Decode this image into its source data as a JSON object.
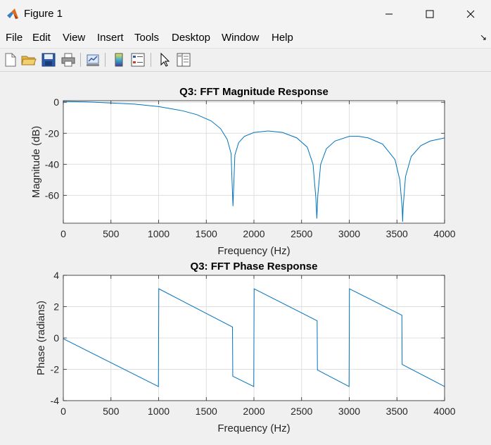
{
  "window": {
    "title": "Figure 1",
    "minimize_icon": "minimize-icon",
    "maximize_icon": "maximize-icon",
    "close_icon": "close-icon"
  },
  "menu": {
    "items": [
      "File",
      "Edit",
      "View",
      "Insert",
      "Tools",
      "Desktop",
      "Window",
      "Help"
    ],
    "dock_icon": "dock-arrow-icon"
  },
  "toolbar": {
    "buttons": [
      "new-figure-icon",
      "open-file-icon",
      "save-icon",
      "print-icon",
      "link-plot-icon",
      "insert-colorbar-icon",
      "insert-legend-icon",
      "edit-plot-arrow-icon",
      "property-inspector-icon"
    ]
  },
  "colors": {
    "line": "#0072bd",
    "axes_bg": "#ffffff",
    "grid": "#dfdfdf",
    "figure_bg": "#f0f0f0"
  },
  "chart_data": [
    {
      "type": "line",
      "title": "Q3: FFT Magnitude Response",
      "xlabel": "Frequency (Hz)",
      "ylabel": "Magnitude (dB)",
      "xlim": [
        0,
        4000
      ],
      "ylim": [
        -78,
        1
      ],
      "xticks": [
        0,
        500,
        1000,
        1500,
        2000,
        2500,
        3000,
        3500,
        4000
      ],
      "yticks": [
        0,
        -20,
        -40,
        -60
      ],
      "grid": true,
      "series": [
        {
          "x": [
            0,
            250,
            500,
            750,
            1000,
            1250,
            1400,
            1550,
            1650,
            1720,
            1760,
            1780,
            1800,
            1840,
            1900,
            2000,
            2150,
            2300,
            2450,
            2560,
            2620,
            2650,
            2660,
            2670,
            2700,
            2760,
            2850,
            3000,
            3100,
            3200,
            3350,
            3480,
            3530,
            3555,
            3560,
            3565,
            3590,
            3650,
            3750,
            3850,
            4000
          ],
          "y": [
            0.5,
            0.2,
            -0.5,
            -1.2,
            -2.8,
            -5.5,
            -8,
            -12,
            -17,
            -24,
            -33,
            -67,
            -34,
            -26,
            -22,
            -19.5,
            -18.5,
            -19.5,
            -23,
            -29,
            -40,
            -62,
            -75,
            -60,
            -40,
            -30,
            -25,
            -22,
            -22,
            -23,
            -27,
            -37,
            -50,
            -68,
            -77,
            -68,
            -48,
            -35,
            -28,
            -25,
            -23
          ]
        }
      ]
    },
    {
      "type": "line",
      "title": "Q3: FFT Phase Response",
      "xlabel": "Frequency (Hz)",
      "ylabel": "Phase (radians)",
      "xlim": [
        0,
        4000
      ],
      "ylim": [
        -4,
        4
      ],
      "xticks": [
        0,
        500,
        1000,
        1500,
        2000,
        2500,
        3000,
        3500,
        4000
      ],
      "yticks": [
        4,
        2,
        0,
        -2,
        -4
      ],
      "grid": true,
      "series": [
        {
          "x": [
            0,
            998,
            1002,
            1775,
            1778,
            1998,
            2002,
            2663,
            2666,
            2998,
            3002,
            3552,
            3555,
            4000
          ],
          "y": [
            -0.05,
            -3.1,
            3.14,
            0.7,
            -2.44,
            -3.1,
            3.14,
            1.1,
            -2.04,
            -3.1,
            3.14,
            1.45,
            -1.69,
            -3.1
          ]
        }
      ]
    }
  ]
}
